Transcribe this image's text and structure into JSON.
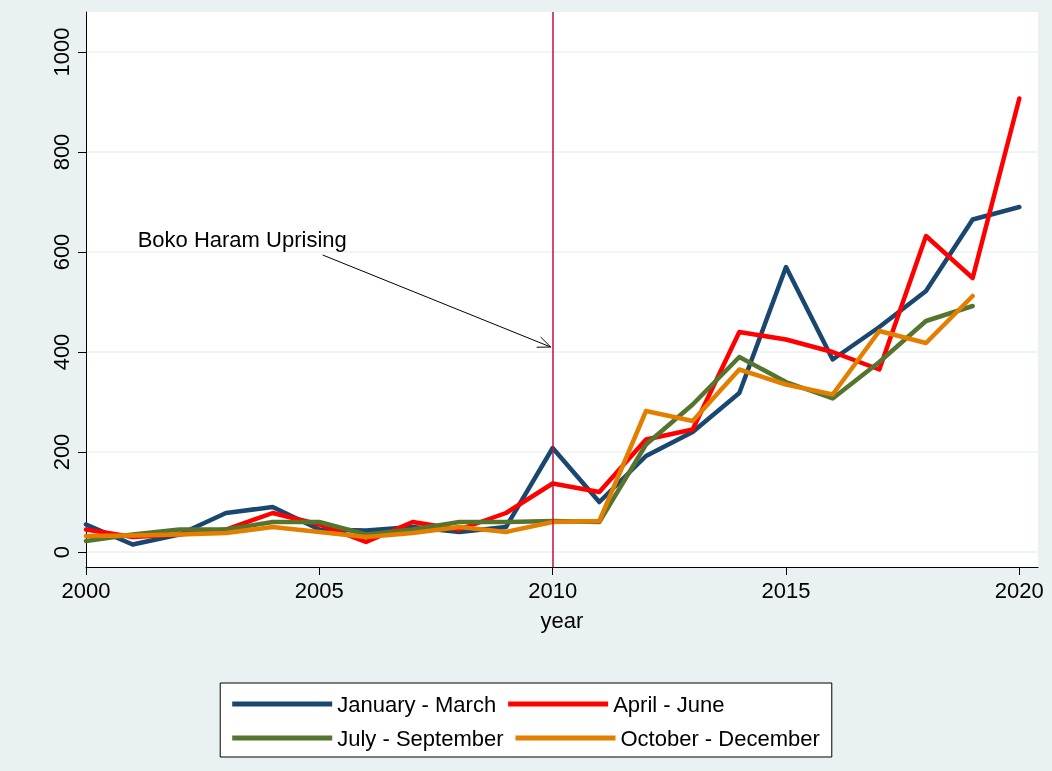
{
  "chart_data": {
    "type": "line",
    "xlabel": "year",
    "x": [
      2000,
      2001,
      2002,
      2003,
      2004,
      2005,
      2006,
      2007,
      2008,
      2009,
      2010,
      2011,
      2012,
      2013,
      2014,
      2015,
      2016,
      2017,
      2018,
      2019,
      2020
    ],
    "xlim": [
      2000,
      2020.4
    ],
    "xticks": [
      2000,
      2005,
      2010,
      2015,
      2020
    ],
    "ylim": [
      -30,
      1080
    ],
    "yticks": [
      0,
      200,
      400,
      600,
      800,
      1000
    ],
    "grid": "y",
    "legend": "bottom",
    "marker": "none",
    "line_style": "solid",
    "series": [
      {
        "name": "January - March",
        "color": "#1a476f",
        "values": [
          55,
          15,
          35,
          78,
          90,
          45,
          43,
          50,
          40,
          50,
          208,
          100,
          192,
          240,
          318,
          570,
          385,
          450,
          522,
          665,
          690
        ]
      },
      {
        "name": "April - June",
        "color": "#ff0000",
        "values": [
          45,
          30,
          35,
          45,
          78,
          55,
          20,
          60,
          45,
          78,
          137,
          120,
          225,
          245,
          440,
          425,
          400,
          365,
          632,
          548,
          907
        ]
      },
      {
        "name": "July - September",
        "color": "#55752f",
        "values": [
          22,
          35,
          45,
          45,
          60,
          60,
          35,
          45,
          60,
          60,
          62,
          60,
          215,
          295,
          390,
          340,
          307,
          380,
          462,
          492,
          null
        ]
      },
      {
        "name": "October - December",
        "color": "#e37e00",
        "values": [
          32,
          33,
          35,
          38,
          50,
          40,
          30,
          38,
          50,
          40,
          60,
          62,
          282,
          262,
          365,
          335,
          315,
          442,
          418,
          512,
          null
        ]
      }
    ],
    "ref_lines": [
      {
        "axis": "x",
        "value": 2010,
        "color": "#c0103a"
      }
    ],
    "annotations": [
      {
        "text": "Boko Haram Uprising",
        "x": 2010,
        "y": 410
      }
    ]
  }
}
